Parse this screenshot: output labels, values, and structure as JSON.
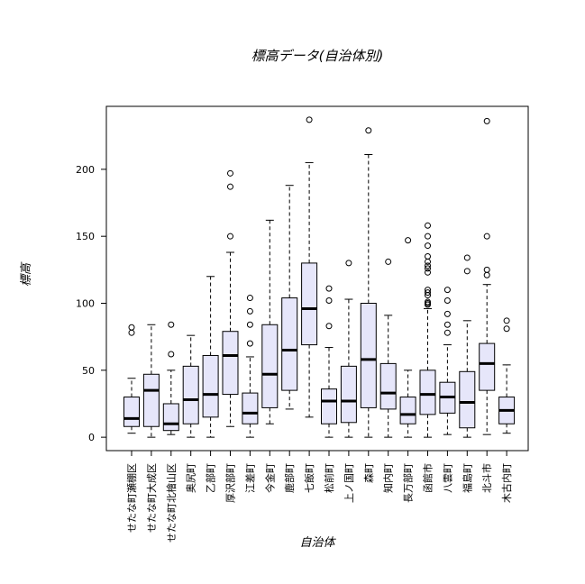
{
  "chart_data": {
    "type": "boxplot",
    "title": "標高データ(自治体別)",
    "xlabel": "自治体",
    "ylabel": "標高",
    "ylim": [
      -10,
      247
    ],
    "yticks": [
      0,
      50,
      100,
      150,
      200
    ],
    "grid": false,
    "colors": {
      "box_fill": "#e6e6fa",
      "box_stroke": "#000000",
      "median": "#000000"
    },
    "categories": [
      "せたな町瀬棚区",
      "せたな町大成区",
      "せたな町北檜山区",
      "奥尻町",
      "乙部町",
      "厚沢部町",
      "江差町",
      "今金町",
      "鹿部町",
      "七飯町",
      "松前町",
      "上ノ国町",
      "森町",
      "知内町",
      "長万部町",
      "函館市",
      "八雲町",
      "福島町",
      "北斗市",
      "木古内町"
    ],
    "boxes": [
      {
        "whisker_low": 3,
        "q1": 8,
        "median": 14,
        "q3": 30,
        "whisker_high": 44,
        "outliers": [
          78,
          82
        ]
      },
      {
        "whisker_low": 0,
        "q1": 8,
        "median": 35,
        "q3": 47,
        "whisker_high": 84,
        "outliers": []
      },
      {
        "whisker_low": 2,
        "q1": 5,
        "median": 10,
        "q3": 25,
        "whisker_high": 50,
        "outliers": [
          62,
          84
        ]
      },
      {
        "whisker_low": 0,
        "q1": 10,
        "median": 28,
        "q3": 53,
        "whisker_high": 76,
        "outliers": []
      },
      {
        "whisker_low": 0,
        "q1": 15,
        "median": 32,
        "q3": 61,
        "whisker_high": 120,
        "outliers": []
      },
      {
        "whisker_low": 8,
        "q1": 32,
        "median": 61,
        "q3": 79,
        "whisker_high": 138,
        "outliers": [
          150,
          187,
          197
        ]
      },
      {
        "whisker_low": 0,
        "q1": 10,
        "median": 18,
        "q3": 33,
        "whisker_high": 60,
        "outliers": [
          70,
          84,
          94,
          104
        ]
      },
      {
        "whisker_low": 10,
        "q1": 22,
        "median": 47,
        "q3": 84,
        "whisker_high": 162,
        "outliers": []
      },
      {
        "whisker_low": 21,
        "q1": 35,
        "median": 65,
        "q3": 104,
        "whisker_high": 188,
        "outliers": []
      },
      {
        "whisker_low": 15,
        "q1": 69,
        "median": 96,
        "q3": 130,
        "whisker_high": 205,
        "outliers": [
          237
        ]
      },
      {
        "whisker_low": 0,
        "q1": 10,
        "median": 27,
        "q3": 36,
        "whisker_high": 67,
        "outliers": [
          83,
          102,
          111
        ]
      },
      {
        "whisker_low": 0,
        "q1": 11,
        "median": 27,
        "q3": 53,
        "whisker_high": 103,
        "outliers": [
          130
        ]
      },
      {
        "whisker_low": 0,
        "q1": 22,
        "median": 58,
        "q3": 100,
        "whisker_high": 211,
        "outliers": [
          229
        ]
      },
      {
        "whisker_low": 0,
        "q1": 21,
        "median": 33,
        "q3": 55,
        "whisker_high": 91,
        "outliers": [
          131
        ]
      },
      {
        "whisker_low": 0,
        "q1": 10,
        "median": 17,
        "q3": 30,
        "whisker_high": 50,
        "outliers": [
          147
        ]
      },
      {
        "whisker_low": 0,
        "q1": 17,
        "median": 32,
        "q3": 50,
        "whisker_high": 96,
        "outliers": [
          99,
          100,
          101,
          106,
          108,
          110,
          123,
          126,
          128,
          131,
          135,
          143,
          150,
          158
        ]
      },
      {
        "whisker_low": 2,
        "q1": 18,
        "median": 30,
        "q3": 41,
        "whisker_high": 69,
        "outliers": [
          78,
          84,
          92,
          102,
          110
        ]
      },
      {
        "whisker_low": 0,
        "q1": 7,
        "median": 26,
        "q3": 49,
        "whisker_high": 87,
        "outliers": [
          124,
          134
        ]
      },
      {
        "whisker_low": 2,
        "q1": 35,
        "median": 55,
        "q3": 70,
        "whisker_high": 114,
        "outliers": [
          121,
          125,
          150,
          236
        ]
      },
      {
        "whisker_low": 3,
        "q1": 10,
        "median": 20,
        "q3": 30,
        "whisker_high": 54,
        "outliers": [
          81,
          87
        ]
      }
    ]
  }
}
